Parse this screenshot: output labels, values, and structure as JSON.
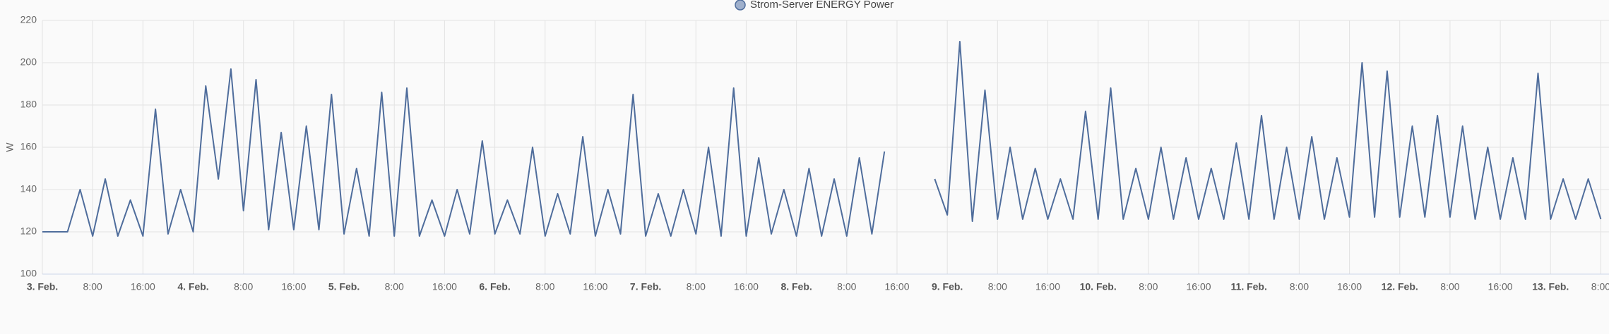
{
  "chart_data": {
    "type": "line",
    "legend": "Strom-Server ENERGY Power",
    "y_label": "W",
    "color": "#4f6d9c",
    "grid": true,
    "ylim": [
      100,
      220
    ],
    "yticks": [
      100,
      120,
      140,
      160,
      180,
      200,
      220
    ],
    "xlim": [
      0,
      249.3
    ],
    "xticks": [
      {
        "value": 0,
        "label": "3. Feb."
      },
      {
        "value": 8,
        "label": "8:00"
      },
      {
        "value": 16,
        "label": "16:00"
      },
      {
        "value": 24,
        "label": "4. Feb."
      },
      {
        "value": 32,
        "label": "8:00"
      },
      {
        "value": 40,
        "label": "16:00"
      },
      {
        "value": 48,
        "label": "5. Feb."
      },
      {
        "value": 56,
        "label": "8:00"
      },
      {
        "value": 64,
        "label": "16:00"
      },
      {
        "value": 72,
        "label": "6. Feb."
      },
      {
        "value": 80,
        "label": "8:00"
      },
      {
        "value": 88,
        "label": "16:00"
      },
      {
        "value": 96,
        "label": "7. Feb."
      },
      {
        "value": 104,
        "label": "8:00"
      },
      {
        "value": 112,
        "label": "16:00"
      },
      {
        "value": 120,
        "label": "8. Feb."
      },
      {
        "value": 128,
        "label": "8:00"
      },
      {
        "value": 136,
        "label": "16:00"
      },
      {
        "value": 144,
        "label": "9. Feb."
      },
      {
        "value": 152,
        "label": "8:00"
      },
      {
        "value": 160,
        "label": "16:00"
      },
      {
        "value": 168,
        "label": "10. Feb."
      },
      {
        "value": 176,
        "label": "8:00"
      },
      {
        "value": 184,
        "label": "16:00"
      },
      {
        "value": 192,
        "label": "11. Feb."
      },
      {
        "value": 200,
        "label": "8:00"
      },
      {
        "value": 208,
        "label": "16:00"
      },
      {
        "value": 216,
        "label": "12. Feb."
      },
      {
        "value": 224,
        "label": "8:00"
      },
      {
        "value": 232,
        "label": "16:00"
      },
      {
        "value": 240,
        "label": "13. Feb."
      },
      {
        "value": 248,
        "label": "8:00"
      }
    ],
    "x": [
      0,
      2,
      4,
      6,
      8,
      10,
      12,
      14,
      16,
      18,
      20,
      22,
      24,
      26,
      28,
      30,
      32,
      34,
      36,
      38,
      40,
      42,
      44,
      46,
      48,
      50,
      52,
      54,
      56,
      58,
      60,
      62,
      64,
      66,
      68,
      70,
      72,
      74,
      76,
      78,
      80,
      82,
      84,
      86,
      88,
      90,
      92,
      94,
      96,
      98,
      100,
      102,
      104,
      106,
      108,
      110,
      112,
      114,
      116,
      118,
      120,
      122,
      124,
      126,
      128,
      130,
      132,
      134,
      136,
      138,
      140,
      142,
      144,
      146,
      148,
      150,
      152,
      154,
      156,
      158,
      160,
      162,
      164,
      166,
      168,
      170,
      172,
      174,
      176,
      178,
      180,
      182,
      184,
      186,
      188,
      190,
      192,
      194,
      196,
      198,
      200,
      202,
      204,
      206,
      208,
      210,
      212,
      214,
      216,
      218,
      220,
      222,
      224,
      226,
      228,
      230,
      232,
      234,
      236,
      238,
      240,
      242,
      244,
      246,
      248
    ],
    "values": [
      120,
      120,
      120,
      140,
      118,
      145,
      118,
      135,
      118,
      178,
      119,
      140,
      120,
      189,
      145,
      197,
      130,
      192,
      121,
      167,
      121,
      170,
      121,
      185,
      119,
      150,
      118,
      186,
      118,
      188,
      118,
      135,
      118,
      140,
      119,
      163,
      119,
      135,
      119,
      160,
      118,
      138,
      119,
      165,
      118,
      140,
      119,
      185,
      118,
      138,
      118,
      140,
      119,
      160,
      118,
      188,
      118,
      155,
      119,
      140,
      118,
      150,
      118,
      145,
      118,
      155,
      119,
      158,
      null,
      null,
      null,
      145,
      128,
      210,
      125,
      187,
      126,
      160,
      126,
      150,
      126,
      145,
      126,
      177,
      126,
      188,
      126,
      150,
      126,
      160,
      126,
      155,
      126,
      150,
      126,
      162,
      126,
      175,
      126,
      160,
      126,
      165,
      126,
      155,
      127,
      200,
      127,
      196,
      127,
      170,
      127,
      175,
      127,
      170,
      126,
      160,
      126,
      155,
      126,
      195,
      126,
      145,
      126,
      145,
      126
    ]
  }
}
